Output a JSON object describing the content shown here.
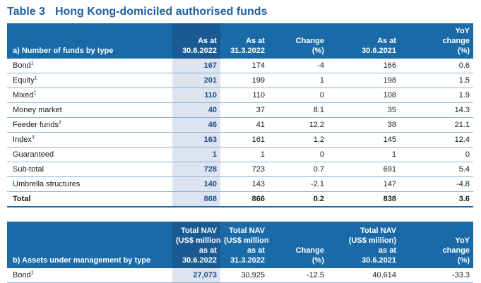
{
  "title": {
    "number": "Table 3",
    "text": "Hong Kong-domiciled authorised funds"
  },
  "table_a": {
    "header": {
      "label": "a) Number of funds by type",
      "columns": [
        [
          "As at",
          "30.6.2022"
        ],
        [
          "As at",
          "31.3.2022"
        ],
        [
          "Change",
          "(%)"
        ],
        [
          "As at",
          "30.6.2021"
        ],
        [
          "YoY",
          "change",
          "(%)"
        ]
      ]
    },
    "rows": [
      {
        "label": "Bond",
        "note": "1",
        "values": [
          "167",
          "174",
          "-4",
          "166",
          "0.6"
        ]
      },
      {
        "label": "Equity",
        "note": "1",
        "values": [
          "201",
          "199",
          "1",
          "198",
          "1.5"
        ]
      },
      {
        "label": "Mixed",
        "note": "1",
        "values": [
          "110",
          "110",
          "0",
          "108",
          "1.9"
        ]
      },
      {
        "label": "Money market",
        "note": "",
        "values": [
          "40",
          "37",
          "8.1",
          "35",
          "14.3"
        ]
      },
      {
        "label": "Feeder funds",
        "note": "2",
        "values": [
          "46",
          "41",
          "12.2",
          "38",
          "21.1"
        ]
      },
      {
        "label": "Index",
        "note": "3",
        "values": [
          "163",
          "161",
          "1.2",
          "145",
          "12.4"
        ]
      },
      {
        "label": "Guaranteed",
        "note": "",
        "values": [
          "1",
          "1",
          "0",
          "1",
          "0"
        ]
      },
      {
        "label": "Sub-total",
        "note": "",
        "values": [
          "728",
          "723",
          "0.7",
          "691",
          "5.4"
        ]
      },
      {
        "label": "Umbrella structures",
        "note": "",
        "values": [
          "140",
          "143",
          "-2.1",
          "147",
          "-4.8"
        ]
      }
    ],
    "total": {
      "label": "Total",
      "values": [
        "868",
        "866",
        "0.2",
        "838",
        "3.6"
      ]
    }
  },
  "table_b": {
    "header": {
      "label": "b) Assets under management by type",
      "columns": [
        [
          "Total NAV",
          "(US$ million)",
          "as at",
          "30.6.2022"
        ],
        [
          "Total NAV",
          "(US$ million)",
          "as at",
          "31.3.2022"
        ],
        [
          "Change",
          "(%)"
        ],
        [
          "Total NAV",
          "(US$ million)",
          "as at",
          "30.6.2021"
        ],
        [
          "YoY",
          "change",
          "(%)"
        ]
      ]
    },
    "rows": [
      {
        "label": "Bond",
        "note": "1",
        "values": [
          "27,073",
          "30,925",
          "-12.5",
          "40,614",
          "-33.3"
        ]
      }
    ]
  },
  "colors": {
    "header_bg": "#1a6aa8",
    "highlight_col": "#dde4f0",
    "title": "#1f5f9e"
  }
}
